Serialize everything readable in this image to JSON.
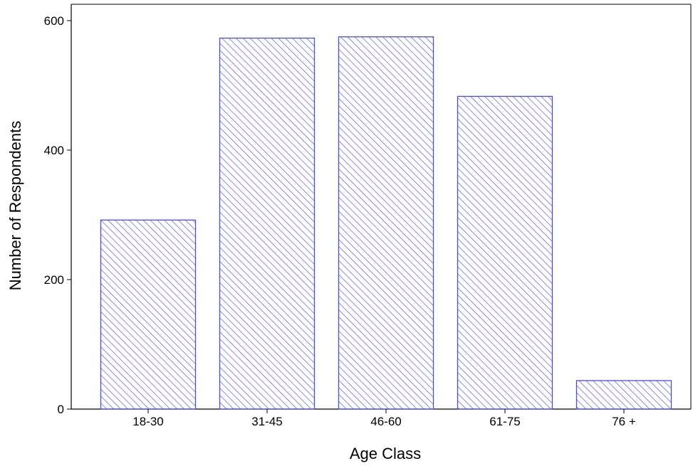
{
  "chart_data": {
    "type": "bar",
    "categories": [
      "18-30",
      "31-45",
      "46-60",
      "61-75",
      "76 +"
    ],
    "values": [
      292,
      573,
      575,
      483,
      44
    ],
    "title": "",
    "xlabel": "Age Class",
    "ylabel": "Number of Respondents",
    "ylim": [
      0,
      625
    ],
    "yticks": [
      0,
      200,
      400,
      600
    ],
    "ytick_labels": [
      "0",
      "200",
      "400",
      "600"
    ],
    "grid": false,
    "legend": "none",
    "colors": {
      "bar_stroke": "#4b4bf0",
      "bar_hatch": "#5a5af2",
      "axis": "#000000"
    },
    "bar_pattern": "diagonal-hatch"
  }
}
